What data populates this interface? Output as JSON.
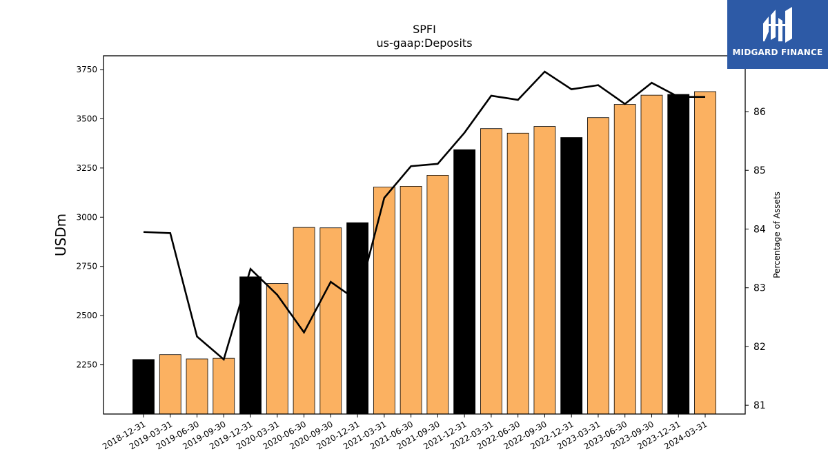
{
  "logo": {
    "text": "MIDGARD FINANCE",
    "bg_color": "#2d5aa6"
  },
  "chart_data": {
    "type": "bar",
    "title": "SPFI",
    "subtitle": "us-gaap:Deposits",
    "ylabel": "USDm",
    "y2label": "Percentage of Assets",
    "ylim": [
      2000,
      3820
    ],
    "y2lim": [
      80.85,
      86.95
    ],
    "yticks": [
      2250,
      2500,
      2750,
      3000,
      3250,
      3500,
      3750
    ],
    "y2ticks": [
      81,
      82,
      83,
      84,
      85,
      86
    ],
    "categories": [
      "2018-12-31",
      "2019-03-31",
      "2019-06-30",
      "2019-09-30",
      "2019-12-31",
      "2020-03-31",
      "2020-06-30",
      "2020-09-30",
      "2020-12-31",
      "2021-03-31",
      "2021-06-30",
      "2021-09-30",
      "2021-12-31",
      "2022-03-31",
      "2022-06-30",
      "2022-09-30",
      "2022-12-31",
      "2023-03-31",
      "2023-06-30",
      "2023-09-30",
      "2023-12-31",
      "2024-03-31"
    ],
    "series": [
      {
        "type": "bar",
        "values": [
          2277,
          2302,
          2280,
          2283,
          2697,
          2663,
          2948,
          2946,
          2972,
          3153,
          3157,
          3213,
          3343,
          3450,
          3427,
          3461,
          3405,
          3506,
          3573,
          3620,
          3624,
          3638
        ],
        "colors": [
          "#000000",
          "#fbb161",
          "#fbb161",
          "#fbb161",
          "#000000",
          "#fbb161",
          "#fbb161",
          "#fbb161",
          "#000000",
          "#fbb161",
          "#fbb161",
          "#fbb161",
          "#000000",
          "#fbb161",
          "#fbb161",
          "#fbb161",
          "#000000",
          "#fbb161",
          "#fbb161",
          "#fbb161",
          "#000000",
          "#fbb161"
        ]
      },
      {
        "type": "line",
        "axis": "right",
        "color": "#000000",
        "values": [
          83.95,
          83.93,
          82.17,
          81.78,
          83.32,
          82.88,
          82.24,
          83.1,
          82.78,
          84.53,
          85.07,
          85.11,
          85.64,
          86.27,
          86.2,
          86.68,
          86.38,
          86.45,
          86.13,
          86.49,
          86.25,
          86.25
        ]
      }
    ],
    "bar_edge_color": "#000000",
    "grid": false,
    "legend": false
  }
}
